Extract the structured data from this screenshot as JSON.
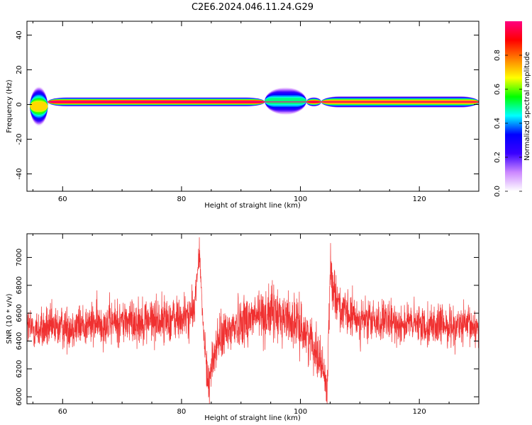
{
  "title": "C2E6.2024.046.11.24.G29",
  "chart_data": [
    {
      "type": "heatmap",
      "xlabel": "Height of straight line (km)",
      "ylabel": "Frequency (Hz)",
      "xlim": [
        54,
        130
      ],
      "ylim": [
        -50,
        48
      ],
      "xticks": [
        60,
        80,
        100,
        120
      ],
      "xtick_labels": [
        "60",
        "80",
        "100",
        "120"
      ],
      "yticks": [
        -40,
        -20,
        0,
        20,
        40
      ],
      "ytick_labels": [
        "-40",
        "-20",
        "0",
        "20",
        "40"
      ],
      "colorbar": {
        "label": "Normalized spectral amplitude",
        "range": [
          0,
          1
        ],
        "ticks": [
          0.0,
          0.2,
          0.4,
          0.6,
          0.8
        ],
        "tick_labels": [
          "0.0",
          "0.2",
          "0.4",
          "0.6",
          "0.8"
        ],
        "colors": [
          "#ffffff",
          "#cc88ff",
          "#3a00ff",
          "#0000ff",
          "#00ffff",
          "#00ff00",
          "#ffff00",
          "#ff8000",
          "#ff0000",
          "#ff0080"
        ]
      },
      "bands": [
        {
          "x": [
            54.5,
            57.5
          ],
          "center": -1,
          "halfwidth": 5,
          "peak": 0.7
        },
        {
          "x": [
            57.5,
            94
          ],
          "center": 1.5,
          "halfwidth": 1.2,
          "peak": 0.95
        },
        {
          "x": [
            94,
            101
          ],
          "center": 2,
          "halfwidth": 3.5,
          "peak": 0.5
        },
        {
          "x": [
            101,
            103.5
          ],
          "center": 1.5,
          "halfwidth": 1.2,
          "peak": 0.9
        },
        {
          "x": [
            103.5,
            130
          ],
          "center": 1.5,
          "halfwidth": 1.5,
          "peak": 0.8
        }
      ]
    },
    {
      "type": "line",
      "xlabel": "Height of straight line (km)",
      "ylabel": "SNR (10 * v/v)",
      "xlim": [
        54,
        130
      ],
      "ylim": [
        5950,
        7170
      ],
      "xticks": [
        60,
        80,
        100,
        120
      ],
      "xtick_labels": [
        "60",
        "80",
        "100",
        "120"
      ],
      "yticks": [
        6000,
        6200,
        6400,
        6600,
        6800,
        7000
      ],
      "ytick_labels": [
        "6000",
        "6200",
        "6400",
        "6600",
        "6800",
        "7000"
      ],
      "series": [
        {
          "name": "SNR",
          "color": "#f03030",
          "x": [
            54,
            56,
            60,
            65,
            70,
            75,
            80,
            82,
            82.5,
            83,
            83.5,
            84,
            84.5,
            86,
            90,
            95,
            98,
            100,
            102,
            103.5,
            104.5,
            105,
            105.5,
            107,
            110,
            115,
            120,
            125,
            130
          ],
          "y": [
            6500,
            6480,
            6500,
            6520,
            6540,
            6550,
            6560,
            6600,
            6800,
            7050,
            6600,
            6300,
            6100,
            6400,
            6550,
            6600,
            6560,
            6500,
            6400,
            6250,
            6050,
            6900,
            6800,
            6600,
            6550,
            6530,
            6520,
            6510,
            6500
          ],
          "noise_amplitude": [
            140,
            140,
            140,
            140,
            150,
            150,
            150,
            140,
            80,
            90,
            120,
            100,
            140,
            150,
            170,
            180,
            170,
            160,
            150,
            150,
            130,
            150,
            150,
            150,
            140,
            130,
            130,
            130,
            130
          ]
        }
      ]
    }
  ]
}
